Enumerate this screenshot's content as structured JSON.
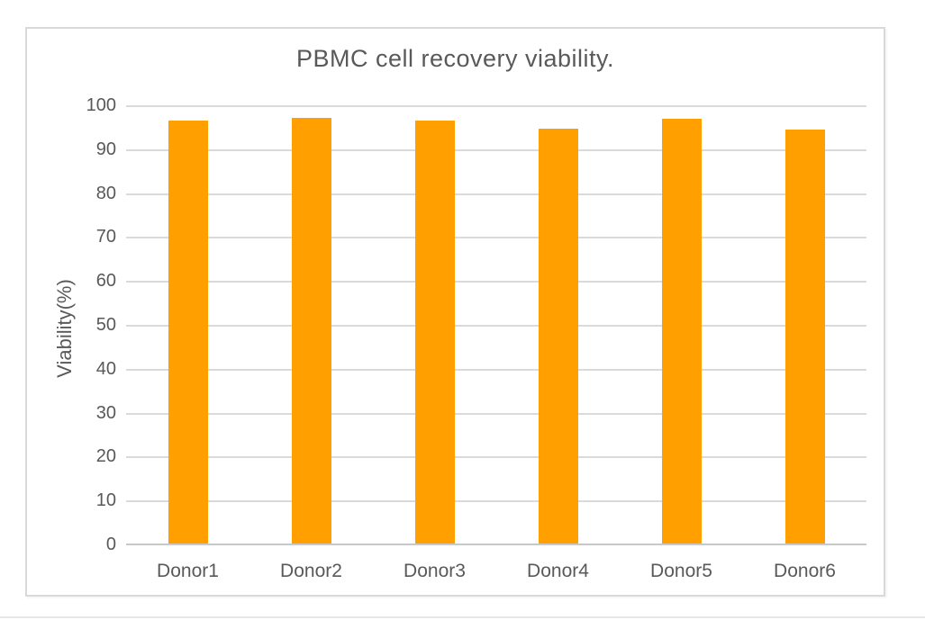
{
  "chart_data": {
    "type": "bar",
    "title": "PBMC cell recovery viability.",
    "categories": [
      "Donor1",
      "Donor2",
      "Donor3",
      "Donor4",
      "Donor5",
      "Donor6"
    ],
    "values": [
      96.5,
      97.2,
      96.5,
      94.6,
      97.0,
      94.4
    ],
    "xlabel": "",
    "ylabel": "Viability(%)",
    "ylim": [
      0,
      100
    ],
    "ytick_step": 10,
    "ytick_labels": [
      "0",
      "10",
      "20",
      "30",
      "40",
      "50",
      "60",
      "70",
      "80",
      "90",
      "100"
    ],
    "grid": true,
    "legend_position": "none",
    "colors": {
      "bar": "#ffa000",
      "gridline": "#dadada",
      "axis_line": "#c8c8c8",
      "text": "#595959",
      "frame_border": "#d9d9d9",
      "background": "#ffffff"
    }
  }
}
